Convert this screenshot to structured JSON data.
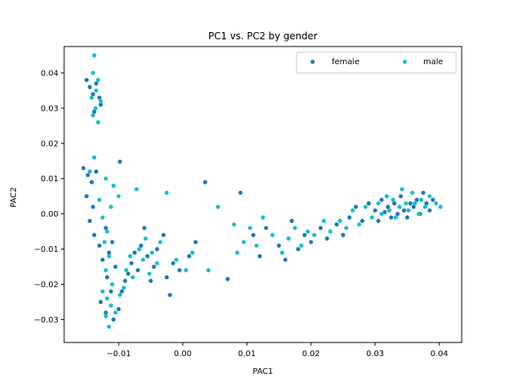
{
  "chart_data": {
    "type": "scatter",
    "title": "PC1 vs. PC2 by gender",
    "xlabel": "PAC1",
    "ylabel": "PAC2",
    "xlim": [
      -0.0185,
      0.0435
    ],
    "ylim": [
      -0.0365,
      0.0475
    ],
    "xticks": [
      -0.01,
      0.0,
      0.01,
      0.02,
      0.03,
      0.04
    ],
    "xtick_labels": [
      "−0.01",
      "0.00",
      "0.01",
      "0.02",
      "0.03",
      "0.04"
    ],
    "yticks": [
      -0.03,
      -0.02,
      -0.01,
      0.0,
      0.01,
      0.02,
      0.03,
      0.04
    ],
    "ytick_labels": [
      "−0.03",
      "−0.02",
      "−0.01",
      "0.00",
      "0.01",
      "0.02",
      "0.03",
      "0.04"
    ],
    "grid": false,
    "legend": {
      "placement": "top-right",
      "columns": 2
    },
    "series": [
      {
        "name": "female",
        "color": "#1f77b4",
        "points": [
          [
            -0.0135,
            0.037
          ],
          [
            -0.014,
            0.034
          ],
          [
            -0.013,
            0.033
          ],
          [
            -0.0145,
            0.036
          ],
          [
            -0.0128,
            0.031
          ],
          [
            -0.0138,
            0.029
          ],
          [
            -0.015,
            0.038
          ],
          [
            -0.0155,
            0.013
          ],
          [
            -0.0148,
            0.011
          ],
          [
            -0.0135,
            0.012
          ],
          [
            -0.0098,
            0.0148
          ],
          [
            -0.0142,
            0.009
          ],
          [
            -0.015,
            0.005
          ],
          [
            -0.014,
            0.002
          ],
          [
            -0.0145,
            -0.002
          ],
          [
            -0.0138,
            -0.006
          ],
          [
            -0.013,
            -0.009
          ],
          [
            -0.0125,
            -0.013
          ],
          [
            -0.0115,
            -0.011
          ],
          [
            -0.011,
            -0.008
          ],
          [
            -0.012,
            -0.004
          ],
          [
            -0.0105,
            -0.015
          ],
          [
            -0.0118,
            -0.018
          ],
          [
            -0.0112,
            -0.022
          ],
          [
            -0.0128,
            -0.025
          ],
          [
            -0.012,
            -0.028
          ],
          [
            -0.0108,
            -0.03
          ],
          [
            -0.01,
            -0.027
          ],
          [
            -0.0095,
            -0.022
          ],
          [
            -0.009,
            -0.019
          ],
          [
            -0.0085,
            -0.017
          ],
          [
            -0.008,
            -0.014
          ],
          [
            -0.0075,
            -0.011
          ],
          [
            -0.007,
            -0.016
          ],
          [
            -0.0065,
            -0.009
          ],
          [
            -0.006,
            -0.004
          ],
          [
            -0.0055,
            -0.012
          ],
          [
            -0.005,
            -0.019
          ],
          [
            -0.0045,
            -0.015
          ],
          [
            -0.004,
            -0.01
          ],
          [
            -0.003,
            -0.006
          ],
          [
            -0.0025,
            -0.018
          ],
          [
            -0.002,
            -0.023
          ],
          [
            -0.0015,
            -0.014
          ],
          [
            -0.0005,
            -0.016
          ],
          [
            0.001,
            -0.012
          ],
          [
            0.002,
            -0.008
          ],
          [
            0.0035,
            0.009
          ],
          [
            0.007,
            -0.0185
          ],
          [
            0.009,
            0.006
          ],
          [
            0.011,
            -0.006
          ],
          [
            0.012,
            -0.012
          ],
          [
            0.013,
            -0.004
          ],
          [
            0.015,
            -0.009
          ],
          [
            0.016,
            -0.013
          ],
          [
            0.017,
            -0.002
          ],
          [
            0.018,
            -0.01
          ],
          [
            0.019,
            -0.006
          ],
          [
            0.02,
            -0.008
          ],
          [
            0.0215,
            -0.004
          ],
          [
            0.0225,
            -0.007
          ],
          [
            0.024,
            -0.003
          ],
          [
            0.025,
            -0.006
          ],
          [
            0.026,
            -0.001
          ],
          [
            0.027,
            0.002
          ],
          [
            0.028,
            -0.002
          ],
          [
            0.029,
            0.003
          ],
          [
            0.03,
            0.001
          ],
          [
            0.0305,
            -0.002
          ],
          [
            0.031,
            0.004
          ],
          [
            0.0315,
            0.0005
          ],
          [
            0.032,
            0.002
          ],
          [
            0.0325,
            -0.001
          ],
          [
            0.033,
            0.003
          ],
          [
            0.0335,
            0.0
          ],
          [
            0.034,
            0.005
          ],
          [
            0.0345,
            0.001
          ],
          [
            0.035,
            -0.001
          ],
          [
            0.0355,
            0.003
          ],
          [
            0.036,
            0.002
          ],
          [
            0.0365,
            0.004
          ],
          [
            0.037,
            0.0
          ],
          [
            0.0375,
            0.006
          ],
          [
            0.038,
            0.003
          ],
          [
            0.0385,
            0.001
          ],
          [
            0.039,
            0.004
          ]
        ]
      },
      {
        "name": "male",
        "color": "#17becf",
        "points": [
          [
            -0.0138,
            0.045
          ],
          [
            -0.014,
            0.04
          ],
          [
            -0.0132,
            0.038
          ],
          [
            -0.0135,
            0.035
          ],
          [
            -0.0142,
            0.033
          ],
          [
            -0.0128,
            0.032
          ],
          [
            -0.0136,
            0.03
          ],
          [
            -0.014,
            0.028
          ],
          [
            -0.0132,
            0.026
          ],
          [
            -0.0138,
            0.016
          ],
          [
            -0.0145,
            0.012
          ],
          [
            -0.012,
            0.01
          ],
          [
            -0.0108,
            0.008
          ],
          [
            -0.01,
            0.005
          ],
          [
            -0.013,
            0.004
          ],
          [
            -0.0112,
            0.002
          ],
          [
            -0.0125,
            -0.001
          ],
          [
            -0.0118,
            -0.005
          ],
          [
            -0.0122,
            -0.008
          ],
          [
            -0.0115,
            -0.012
          ],
          [
            -0.012,
            -0.016
          ],
          [
            -0.011,
            -0.02
          ],
          [
            -0.0125,
            -0.022
          ],
          [
            -0.0118,
            -0.024
          ],
          [
            -0.0112,
            -0.026
          ],
          [
            -0.012,
            -0.029
          ],
          [
            -0.0115,
            -0.032
          ],
          [
            -0.0105,
            -0.028
          ],
          [
            -0.0098,
            -0.023
          ],
          [
            -0.0092,
            -0.021
          ],
          [
            -0.0088,
            -0.016
          ],
          [
            -0.0082,
            -0.012
          ],
          [
            -0.0078,
            -0.018
          ],
          [
            -0.0072,
            0.007
          ],
          [
            -0.0068,
            -0.01
          ],
          [
            -0.0062,
            -0.013
          ],
          [
            -0.0058,
            -0.007
          ],
          [
            -0.0052,
            -0.017
          ],
          [
            -0.0048,
            -0.011
          ],
          [
            -0.004,
            -0.014
          ],
          [
            -0.0035,
            -0.008
          ],
          [
            -0.0025,
            0.006
          ],
          [
            -0.001,
            -0.013
          ],
          [
            0.0005,
            -0.016
          ],
          [
            0.0015,
            -0.011
          ],
          [
            0.004,
            -0.016
          ],
          [
            0.0055,
            0.002
          ],
          [
            0.008,
            -0.003
          ],
          [
            0.0085,
            -0.011
          ],
          [
            0.0095,
            -0.008
          ],
          [
            0.0105,
            -0.004
          ],
          [
            0.0115,
            -0.009
          ],
          [
            0.0125,
            -0.001
          ],
          [
            0.014,
            -0.006
          ],
          [
            0.0155,
            -0.011
          ],
          [
            0.0165,
            -0.007
          ],
          [
            0.0175,
            -0.004
          ],
          [
            0.0185,
            -0.009
          ],
          [
            0.0195,
            -0.005
          ],
          [
            0.0205,
            -0.006
          ],
          [
            0.022,
            -0.002
          ],
          [
            0.023,
            -0.005
          ],
          [
            0.0245,
            -0.002
          ],
          [
            0.0255,
            -0.004
          ],
          [
            0.0265,
            0.001
          ],
          [
            0.0275,
            -0.003
          ],
          [
            0.0285,
            0.002
          ],
          [
            0.0295,
            -0.001
          ],
          [
            0.0305,
            0.003
          ],
          [
            0.031,
            0.0
          ],
          [
            0.0318,
            0.005
          ],
          [
            0.0322,
            0.001
          ],
          [
            0.0328,
            0.004
          ],
          [
            0.0332,
            -0.001
          ],
          [
            0.0338,
            0.002
          ],
          [
            0.0342,
            0.007
          ],
          [
            0.0348,
            0.003
          ],
          [
            0.0352,
            0.001
          ],
          [
            0.0358,
            0.006
          ],
          [
            0.0362,
            0.003
          ],
          [
            0.0368,
            0.0
          ],
          [
            0.0372,
            0.004
          ],
          [
            0.0378,
            0.002
          ],
          [
            0.0385,
            0.005
          ],
          [
            0.0395,
            0.003
          ],
          [
            0.0402,
            0.002
          ]
        ]
      }
    ]
  }
}
